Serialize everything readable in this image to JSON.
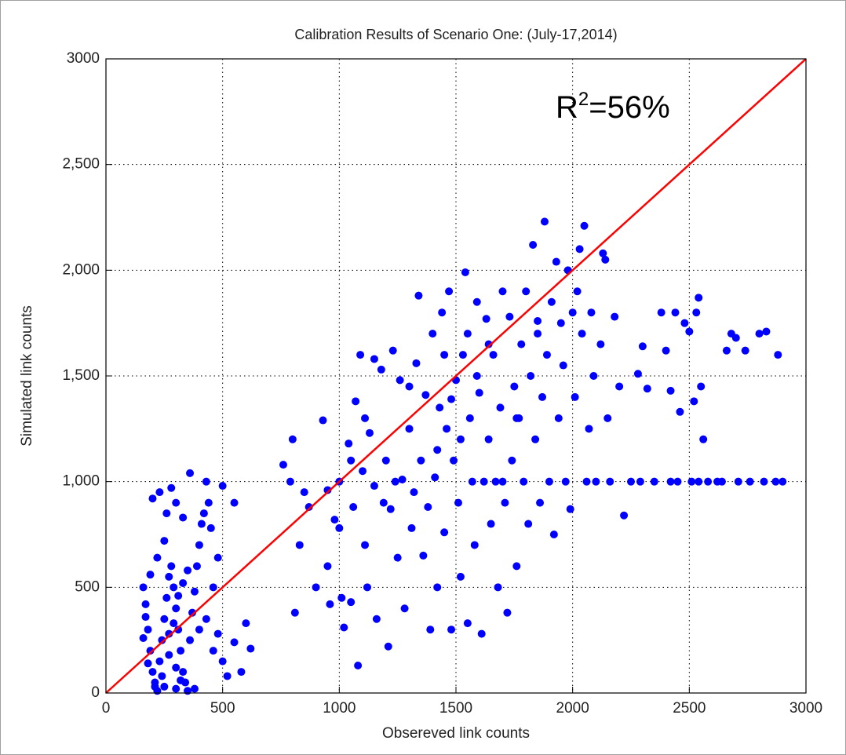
{
  "chart_data": {
    "type": "scatter",
    "title": "Calibration Results of Scenario One: (July-17,2014)",
    "x_label": "Obsereved link counts",
    "y_label": "Simulated link counts",
    "annotation": {
      "base": "R",
      "superscript": "2",
      "rest": "=56%"
    },
    "color": "#0000ff",
    "x": [
      160,
      170,
      180,
      190,
      200,
      210,
      220,
      230,
      240,
      250,
      260,
      270,
      280,
      290,
      300,
      310,
      320,
      330,
      340,
      350,
      360,
      370,
      380,
      390,
      400,
      410,
      420,
      430,
      440,
      450,
      200,
      230,
      260,
      280,
      300,
      360,
      330,
      250,
      220,
      190,
      170,
      160,
      180,
      210,
      240,
      270,
      300,
      320,
      380,
      400,
      430,
      460,
      480,
      500,
      520,
      550,
      580,
      600,
      620,
      550,
      500,
      480,
      460,
      250,
      300,
      270,
      290,
      310,
      330,
      350,
      760,
      790,
      800,
      810,
      830,
      850,
      870,
      900,
      930,
      950,
      960,
      980,
      1000,
      1010,
      1020,
      1040,
      1060,
      1070,
      1080,
      1090,
      1100,
      1110,
      1120,
      1130,
      1150,
      1160,
      1180,
      1200,
      1210,
      1220,
      1230,
      1250,
      1260,
      1270,
      1280,
      1300,
      1310,
      1330,
      1340,
      1350,
      1360,
      1370,
      1380,
      1390,
      1400,
      1410,
      1420,
      1430,
      1440,
      1450,
      1460,
      1470,
      1480,
      1490,
      1500,
      1510,
      1520,
      1530,
      1540,
      1550,
      1560,
      1570,
      1580,
      1590,
      1600,
      1610,
      1620,
      1630,
      1640,
      1650,
      1660,
      1670,
      1680,
      1690,
      1700,
      1710,
      1720,
      1730,
      1740,
      1750,
      1760,
      1770,
      1780,
      1790,
      1800,
      1810,
      1820,
      1830,
      1840,
      1850,
      1860,
      1870,
      1880,
      1890,
      1900,
      1910,
      1920,
      1930,
      1940,
      1950,
      1960,
      1970,
      1980,
      1990,
      2000,
      2010,
      2020,
      2030,
      2040,
      2050,
      2060,
      2070,
      2080,
      2090,
      2100,
      2120,
      2130,
      2140,
      2150,
      2160,
      2180,
      1050,
      1110,
      1190,
      1240,
      1320,
      1420,
      1480,
      1520,
      1590,
      1640,
      950,
      1000,
      1050,
      1150,
      1300,
      1450,
      1550,
      1700,
      1760,
      1850,
      2200,
      2220,
      2250,
      2280,
      2300,
      2320,
      2350,
      2380,
      2400,
      2420,
      2440,
      2450,
      2460,
      2480,
      2500,
      2510,
      2520,
      2530,
      2540,
      2550,
      2560,
      2620,
      2640,
      2660,
      2680,
      2700,
      2710,
      2740,
      2760,
      2800,
      2820,
      2830,
      2870,
      2880,
      2900,
      2290,
      2420,
      2540,
      2580
    ],
    "values": [
      500,
      420,
      300,
      200,
      100,
      50,
      10,
      150,
      250,
      350,
      450,
      550,
      600,
      500,
      400,
      300,
      200,
      100,
      50,
      10,
      250,
      380,
      480,
      600,
      700,
      800,
      850,
      1000,
      900,
      780,
      920,
      950,
      850,
      970,
      900,
      1040,
      830,
      720,
      640,
      560,
      360,
      260,
      140,
      30,
      80,
      180,
      120,
      60,
      20,
      300,
      350,
      200,
      280,
      150,
      80,
      240,
      100,
      330,
      210,
      900,
      980,
      640,
      500,
      30,
      20,
      280,
      330,
      460,
      520,
      580,
      1080,
      1000,
      1200,
      380,
      700,
      950,
      880,
      500,
      1290,
      960,
      420,
      820,
      1000,
      450,
      310,
      1180,
      880,
      1380,
      130,
      1600,
      1050,
      700,
      500,
      1230,
      980,
      350,
      1530,
      1100,
      220,
      870,
      1620,
      640,
      1480,
      1010,
      400,
      1250,
      780,
      1560,
      1880,
      1100,
      650,
      1410,
      880,
      300,
      1700,
      1020,
      500,
      1350,
      1800,
      760,
      1250,
      1900,
      300,
      1100,
      1480,
      900,
      550,
      1600,
      1990,
      330,
      1300,
      1000,
      700,
      1850,
      1420,
      280,
      1000,
      1770,
      1200,
      800,
      1600,
      1000,
      500,
      1350,
      1900,
      900,
      380,
      1780,
      1100,
      1450,
      600,
      1300,
      1650,
      1000,
      1900,
      800,
      1500,
      2120,
      1200,
      1760,
      900,
      1400,
      2230,
      1600,
      1000,
      1850,
      750,
      2040,
      1300,
      1750,
      1550,
      1000,
      2000,
      870,
      1800,
      1400,
      1900,
      2100,
      1700,
      2210,
      1000,
      1250,
      1800,
      1500,
      1000,
      1650,
      2080,
      2050,
      1300,
      1000,
      1780,
      1100,
      1300,
      900,
      1000,
      950,
      1150,
      1390,
      1200,
      1500,
      1650,
      600,
      780,
      430,
      1580,
      1450,
      1600,
      1700,
      1000,
      1300,
      1700,
      1450,
      840,
      1000,
      1510,
      1640,
      1440,
      1000,
      1800,
      1620,
      1430,
      1800,
      1000,
      1330,
      1750,
      1710,
      1000,
      1380,
      1800,
      1870,
      1450,
      1200,
      1000,
      1000,
      1620,
      1700,
      1680,
      1000,
      1620,
      1000,
      1700,
      1000,
      1710,
      1000,
      1600,
      1000,
      1000,
      1000,
      1000,
      1000
    ],
    "reference_line": {
      "color": "#ff0000",
      "x": [
        0,
        3000
      ],
      "values": [
        0,
        3000
      ]
    },
    "xlim": [
      0,
      3000
    ],
    "ylim": [
      0,
      3000
    ],
    "xticks": [
      0,
      500,
      1000,
      1500,
      2000,
      2500,
      3000
    ],
    "yticks": [
      0,
      500,
      {
        "value": 1000,
        "label": "1,000"
      },
      {
        "value": 1500,
        "label": "1,500"
      },
      {
        "value": 2000,
        "label": "2,000"
      },
      {
        "value": 2500,
        "label": "2,500"
      },
      3000
    ],
    "grid": true
  }
}
